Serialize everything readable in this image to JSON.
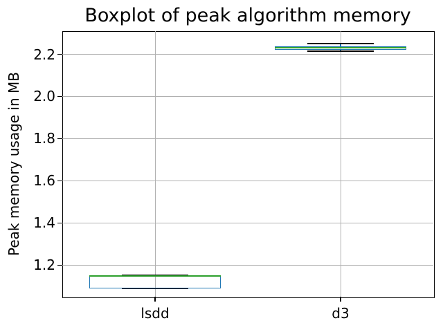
{
  "chart_data": {
    "type": "boxplot",
    "title": "Boxplot of peak algorithm memory",
    "ylabel": "Peak memory usage in MB",
    "xlabel": "",
    "categories": [
      "lsdd",
      "d3"
    ],
    "positions": [
      1,
      2
    ],
    "xlim": [
      0.5,
      2.5
    ],
    "ylim": [
      1.05,
      2.31
    ],
    "yticks": [
      "1.2",
      "1.4",
      "1.6",
      "1.8",
      "2.0",
      "2.2"
    ],
    "grid": true,
    "legend": false,
    "boxes": [
      {
        "category": "lsdd",
        "whislo": 1.09,
        "q1": 1.09,
        "med": 1.148,
        "q3": 1.148,
        "whishi": 1.153,
        "fliers": []
      },
      {
        "category": "d3",
        "whislo": 2.216,
        "q1": 2.222,
        "med": 2.23,
        "q3": 2.238,
        "whishi": 2.251,
        "fliers": []
      }
    ],
    "colors": {
      "box_edge": "#1f77b4",
      "median": "#2ca02c",
      "whisker": "#1f77b4",
      "cap": "#000000",
      "grid_line": "#b0b0b0",
      "spine": "#000000",
      "text": "#000000",
      "background": "#ffffff"
    }
  }
}
